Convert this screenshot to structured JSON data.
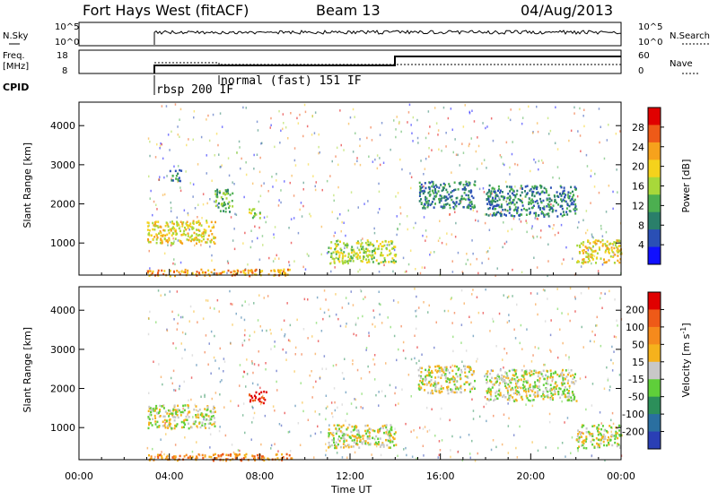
{
  "header": {
    "station": "Fort Hays West (fitACF)",
    "beam": "Beam 13",
    "date": "04/Aug/2013"
  },
  "params": {
    "nsky_label": "N.Sky",
    "nsky_ticks": [
      "10^5",
      "10^0"
    ],
    "nsearch_label": "N.Search",
    "nsearch_ticks": [
      "10^5",
      "10^0"
    ],
    "freq_label": "Freq.",
    "freq_unit": "[MHz]",
    "freq_ticks": [
      "18",
      "8"
    ],
    "nave_label": "Nave",
    "nave_ticks": [
      "60",
      "0"
    ],
    "cpid_label": "CPID",
    "cpid_modes": [
      "rbsp 200 IF",
      "normal (fast) 151 IF"
    ]
  },
  "chart_data": [
    {
      "type": "heatmap",
      "title": "",
      "xlabel": "Time UT",
      "ylabel": "Slant Range [km]",
      "x_ticks": [
        "00:00",
        "04:00",
        "08:00",
        "12:00",
        "16:00",
        "20:00",
        "00:00"
      ],
      "xlim_hours": [
        0,
        24
      ],
      "ylim": [
        180,
        4600
      ],
      "y_ticks": [
        1000,
        2000,
        3000,
        4000
      ],
      "colorbar": {
        "label": "Power [dB]",
        "ticks": [
          "4",
          "8",
          "12",
          "16",
          "20",
          "24",
          "28"
        ],
        "colors": [
          "#1010ff",
          "#2a4fb5",
          "#2a7f6a",
          "#4caf50",
          "#a8d83a",
          "#f5d21c",
          "#f6a21c",
          "#ee5a18",
          "#e00000"
        ]
      },
      "regions": [
        {
          "t": [
            3.0,
            6.0
          ],
          "r": [
            1000,
            1600
          ],
          "level": 5
        },
        {
          "t": [
            6.0,
            6.8
          ],
          "r": [
            1800,
            2400
          ],
          "level": 3
        },
        {
          "t": [
            4.0,
            4.5
          ],
          "r": [
            2600,
            2900
          ],
          "level": 2
        },
        {
          "t": [
            7.5,
            8.0
          ],
          "r": [
            1650,
            1900
          ],
          "level": 4
        },
        {
          "t": [
            3.0,
            9.5
          ],
          "r": [
            180,
            350
          ],
          "level": 6
        },
        {
          "t": [
            11.0,
            14.0
          ],
          "r": [
            500,
            1100
          ],
          "level": 4
        },
        {
          "t": [
            15.0,
            17.5
          ],
          "r": [
            1900,
            2600
          ],
          "level": 2
        },
        {
          "t": [
            18.0,
            22.0
          ],
          "r": [
            1700,
            2500
          ],
          "level": 2
        },
        {
          "t": [
            22.0,
            24.0
          ],
          "r": [
            500,
            1100
          ],
          "level": 5
        }
      ]
    },
    {
      "type": "heatmap",
      "title": "",
      "xlabel": "Time UT",
      "ylabel": "Slant Range [km]",
      "x_ticks": [
        "00:00",
        "04:00",
        "08:00",
        "12:00",
        "16:00",
        "20:00",
        "00:00"
      ],
      "xlim_hours": [
        0,
        24
      ],
      "ylim": [
        180,
        4600
      ],
      "y_ticks": [
        1000,
        2000,
        3000,
        4000
      ],
      "colorbar": {
        "label": "Velocity [m s",
        "label_sup": "-1",
        "label_end": "]",
        "ticks": [
          "200",
          "100",
          "50",
          "15",
          "-15",
          "-50",
          "-100",
          "-200"
        ],
        "colors": [
          "#2a3fb5",
          "#2a6fa0",
          "#2c8f5a",
          "#5fcf3a",
          "#c8c8c8",
          "#f5b21c",
          "#f58a1c",
          "#ee5a18",
          "#e00000"
        ]
      },
      "regions": [
        {
          "t": [
            3.0,
            6.0
          ],
          "r": [
            1000,
            1600
          ],
          "level": 4
        },
        {
          "t": [
            7.5,
            8.3
          ],
          "r": [
            1650,
            1950
          ],
          "level": 8
        },
        {
          "t": [
            3.0,
            9.5
          ],
          "r": [
            180,
            350
          ],
          "level": 6
        },
        {
          "t": [
            11.0,
            14.0
          ],
          "r": [
            500,
            1100
          ],
          "level": 4
        },
        {
          "t": [
            15.0,
            17.5
          ],
          "r": [
            1900,
            2600
          ],
          "level": 4
        },
        {
          "t": [
            18.0,
            22.0
          ],
          "r": [
            1700,
            2500
          ],
          "level": 4
        },
        {
          "t": [
            22.0,
            24.0
          ],
          "r": [
            500,
            1100
          ],
          "level": 4
        }
      ]
    }
  ]
}
